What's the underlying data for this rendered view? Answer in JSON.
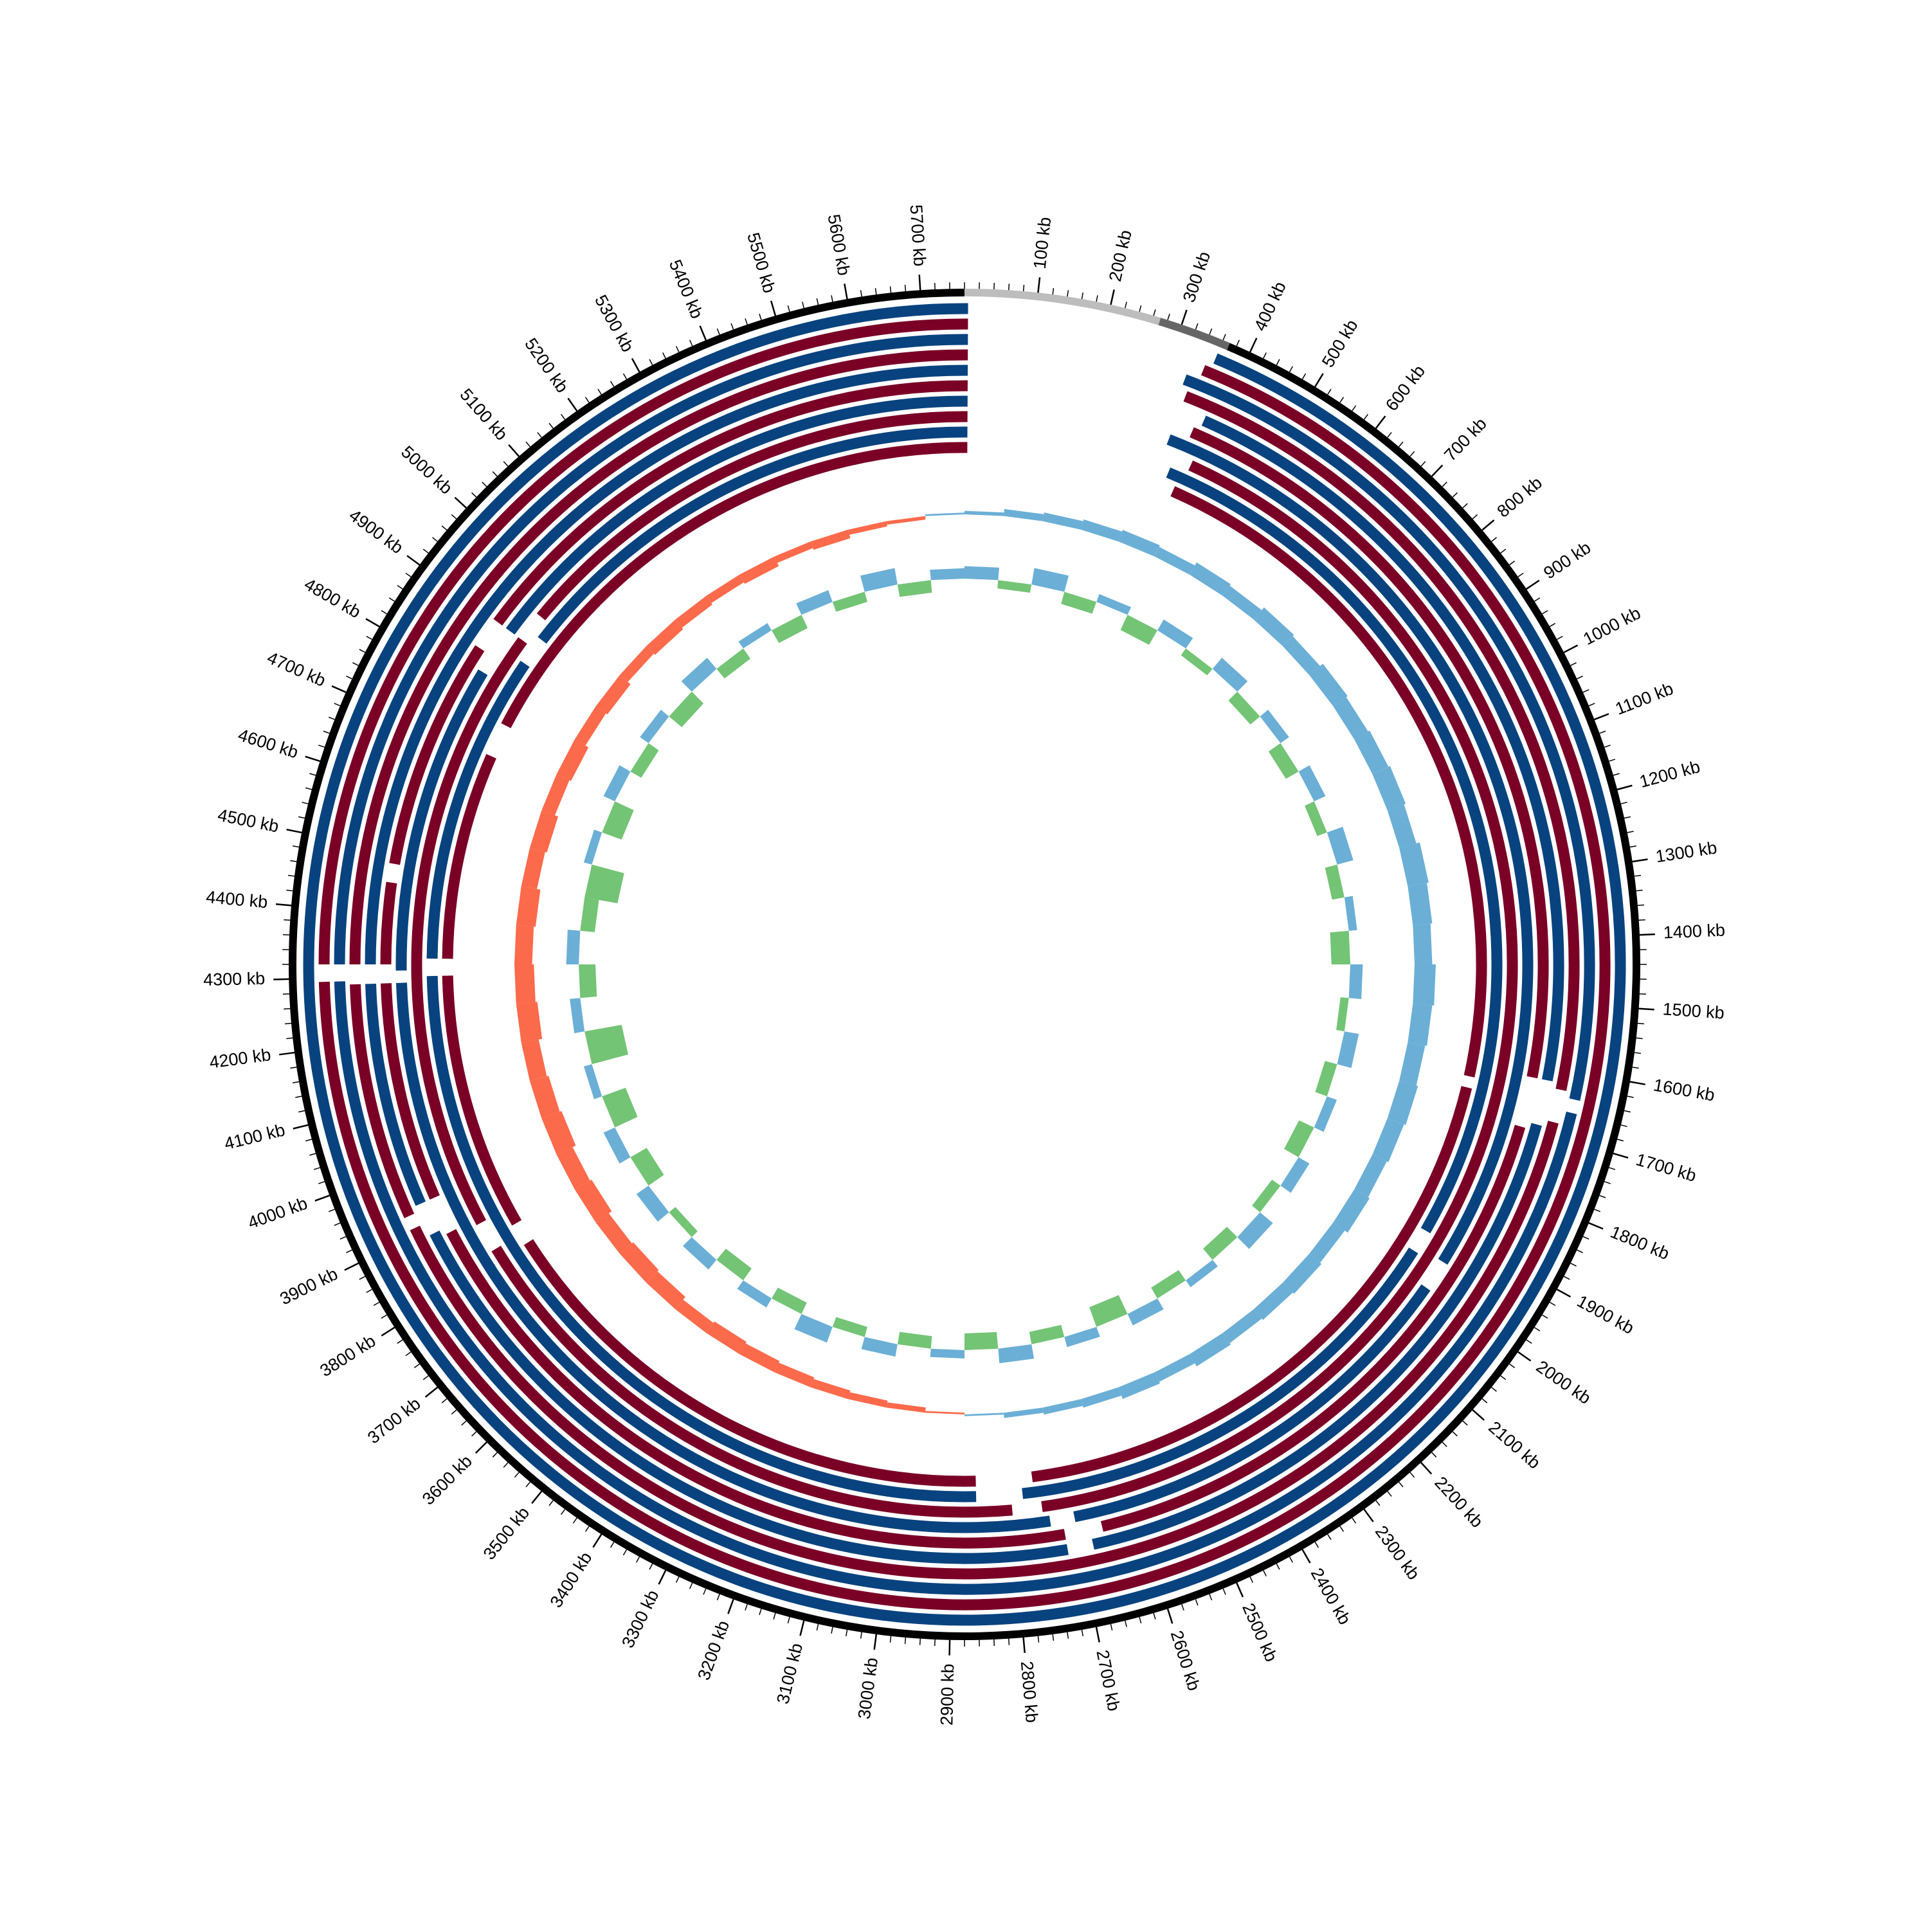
{
  "chart_data": {
    "type": "circular-genome",
    "xlim": [
      0,
      5760
    ],
    "xticks": [
      {
        "value": 100,
        "label": "100 kb"
      },
      {
        "value": 200,
        "label": "200 kb"
      },
      {
        "value": 300,
        "label": "300 kb"
      },
      {
        "value": 400,
        "label": "400 kb"
      },
      {
        "value": 500,
        "label": "500 kb"
      },
      {
        "value": 600,
        "label": "600 kb"
      },
      {
        "value": 700,
        "label": "700 kb"
      },
      {
        "value": 800,
        "label": "800 kb"
      },
      {
        "value": 900,
        "label": "900 kb"
      },
      {
        "value": 1000,
        "label": "1000 kb"
      },
      {
        "value": 1100,
        "label": "1100 kb"
      },
      {
        "value": 1200,
        "label": "1200 kb"
      },
      {
        "value": 1300,
        "label": "1300 kb"
      },
      {
        "value": 1400,
        "label": "1400 kb"
      },
      {
        "value": 1500,
        "label": "1500 kb"
      },
      {
        "value": 1600,
        "label": "1600 kb"
      },
      {
        "value": 1700,
        "label": "1700 kb"
      },
      {
        "value": 1800,
        "label": "1800 kb"
      },
      {
        "value": 1900,
        "label": "1900 kb"
      },
      {
        "value": 2000,
        "label": "2000 kb"
      },
      {
        "value": 2100,
        "label": "2100 kb"
      },
      {
        "value": 2200,
        "label": "2200 kb"
      },
      {
        "value": 2300,
        "label": "2300 kb"
      },
      {
        "value": 2400,
        "label": "2400 kb"
      },
      {
        "value": 2500,
        "label": "2500 kb"
      },
      {
        "value": 2600,
        "label": "2600 kb"
      },
      {
        "value": 2700,
        "label": "2700 kb"
      },
      {
        "value": 2800,
        "label": "2800 kb"
      },
      {
        "value": 2900,
        "label": "2900 kb"
      },
      {
        "value": 3000,
        "label": "3000 kb"
      },
      {
        "value": 3100,
        "label": "3100 kb"
      },
      {
        "value": 3200,
        "label": "3200 kb"
      },
      {
        "value": 3300,
        "label": "3300 kb"
      },
      {
        "value": 3400,
        "label": "3400 kb"
      },
      {
        "value": 3500,
        "label": "3500 kb"
      },
      {
        "value": 3600,
        "label": "3600 kb"
      },
      {
        "value": 3700,
        "label": "3700 kb"
      },
      {
        "value": 3800,
        "label": "3800 kb"
      },
      {
        "value": 3900,
        "label": "3900 kb"
      },
      {
        "value": 4000,
        "label": "4000 kb"
      },
      {
        "value": 4100,
        "label": "4100 kb"
      },
      {
        "value": 4200,
        "label": "4200 kb"
      },
      {
        "value": 4300,
        "label": "4300 kb"
      },
      {
        "value": 4400,
        "label": "4400 kb"
      },
      {
        "value": 4500,
        "label": "4500 kb"
      },
      {
        "value": 4600,
        "label": "4600 kb"
      },
      {
        "value": 4700,
        "label": "4700 kb"
      },
      {
        "value": 4800,
        "label": "4800 kb"
      },
      {
        "value": 4900,
        "label": "4900 kb"
      },
      {
        "value": 5000,
        "label": "5000 kb"
      },
      {
        "value": 5100,
        "label": "5100 kb"
      },
      {
        "value": 5200,
        "label": "5200 kb"
      },
      {
        "value": 5300,
        "label": "5300 kb"
      },
      {
        "value": 5400,
        "label": "5400 kb"
      },
      {
        "value": 5500,
        "label": "5500 kb"
      },
      {
        "value": 5600,
        "label": "5600 kb"
      },
      {
        "value": 5700,
        "label": "5700 kb"
      }
    ],
    "minor_tick_step": 20,
    "backbone": [
      {
        "start": 0,
        "end": 270,
        "color": "#bdbdbd"
      },
      {
        "start": 270,
        "end": 370,
        "color": "#666666"
      },
      {
        "start": 370,
        "end": 5760,
        "color": "#000000"
      }
    ],
    "rings": [
      {
        "color": "#08427f",
        "gaps": [
          [
            5,
            360
          ]
        ]
      },
      {
        "color": "#7a0026",
        "gaps": [
          [
            5,
            350
          ],
          [
            4295,
            4320
          ]
        ]
      },
      {
        "color": "#08427f",
        "gaps": [
          [
            5,
            330
          ],
          [
            1640,
            1660
          ],
          [
            4295,
            4320
          ]
        ]
      },
      {
        "color": "#7a0026",
        "gaps": [
          [
            5,
            340
          ],
          [
            1630,
            1680
          ],
          [
            3910,
            3930
          ],
          [
            4290,
            4320
          ]
        ]
      },
      {
        "color": "#08427f",
        "gaps": [
          [
            5,
            380
          ],
          [
            1620,
            1690
          ],
          [
            2680,
            2720
          ],
          [
            3890,
            3940
          ],
          [
            4290,
            4320
          ]
        ]
      },
      {
        "color": "#7a0026",
        "gaps": [
          [
            5,
            370
          ],
          [
            1620,
            1700
          ],
          [
            2660,
            2720
          ],
          [
            3880,
            3940
          ],
          [
            4290,
            4320
          ],
          [
            4450,
            4480
          ],
          [
            4850,
            4900
          ]
        ]
      },
      {
        "color": "#08427f",
        "gaps": [
          [
            5,
            340
          ],
          [
            1950,
            2000
          ],
          [
            2700,
            2740
          ],
          [
            4290,
            4310
          ],
          [
            4820,
            4900
          ]
        ]
      },
      {
        "color": "#7a0026",
        "gaps": [
          [
            5,
            390
          ],
          [
            2750,
            2800
          ],
          [
            3820,
            3870
          ],
          [
            4900,
            4950
          ]
        ]
      },
      {
        "color": "#08427f",
        "gaps": [
          [
            5,
            360
          ],
          [
            1920,
            1960
          ],
          [
            2780,
            2860
          ],
          [
            4300,
            4330
          ],
          [
            4870,
            4920
          ]
        ]
      },
      {
        "color": "#7a0026",
        "gaps": [
          [
            5,
            380
          ],
          [
            1640,
            1660
          ],
          [
            2760,
            2860
          ],
          [
            3800,
            3840
          ],
          [
            4300,
            4330
          ],
          [
            4700,
            4760
          ]
        ]
      }
    ],
    "window_kb": 80,
    "tracks": [
      {
        "ylim": [
          -1,
          1
        ],
        "positive_color": "#6baed6",
        "negative_color": "#fb6a4a",
        "values": [
          0.1,
          0.2,
          0.25,
          0.3,
          0.35,
          0.3,
          0.4,
          0.35,
          0.45,
          0.4,
          0.5,
          0.45,
          0.5,
          0.55,
          0.5,
          0.6,
          0.55,
          0.5,
          0.6,
          0.55,
          0.5,
          0.55,
          0.5,
          0.45,
          0.5,
          0.4,
          0.45,
          0.4,
          0.35,
          0.4,
          0.3,
          0.35,
          0.25,
          0.2,
          0.15,
          0.05,
          -0.05,
          -0.15,
          -0.2,
          -0.25,
          -0.3,
          -0.35,
          -0.4,
          -0.35,
          -0.45,
          -0.5,
          -0.45,
          -0.55,
          -0.5,
          -0.6,
          -0.55,
          -0.5,
          -0.6,
          -0.55,
          -0.5,
          -0.55,
          -0.45,
          -0.5,
          -0.4,
          -0.45,
          -0.35,
          -0.4,
          -0.3,
          -0.35,
          -0.3,
          -0.25,
          -0.3,
          -0.2,
          -0.25,
          -0.15,
          -0.1,
          0.05
        ]
      },
      {
        "ylim": [
          -1,
          1
        ],
        "positive_color": "#6baed6",
        "negative_color": "#74c476",
        "values": [
          0.3,
          -0.2,
          0.4,
          -0.3,
          0.2,
          -0.4,
          0.3,
          -0.2,
          0.35,
          -0.3,
          0.25,
          -0.35,
          0.3,
          -0.25,
          0.4,
          -0.3,
          0.2,
          -0.45,
          0.3,
          -0.2,
          0.35,
          -0.3,
          0.25,
          -0.4,
          0.3,
          -0.25,
          0.4,
          -0.35,
          0.2,
          -0.3,
          0.3,
          -0.5,
          0.25,
          -0.3,
          0.35,
          -0.4,
          0.2,
          -0.3,
          0.3,
          -0.25,
          0.4,
          -0.3,
          0.25,
          -0.35,
          0.3,
          -0.2,
          0.35,
          -0.45,
          0.3,
          -0.6,
          0.2,
          -0.9,
          0.25,
          -0.4,
          0.3,
          -0.35,
          -0.8,
          0.2,
          -0.5,
          0.3,
          -0.3,
          0.25,
          -0.4,
          0.35,
          -0.3,
          0.2,
          -0.35,
          0.3,
          -0.25,
          0.4,
          -0.3,
          0.25
        ]
      }
    ]
  }
}
